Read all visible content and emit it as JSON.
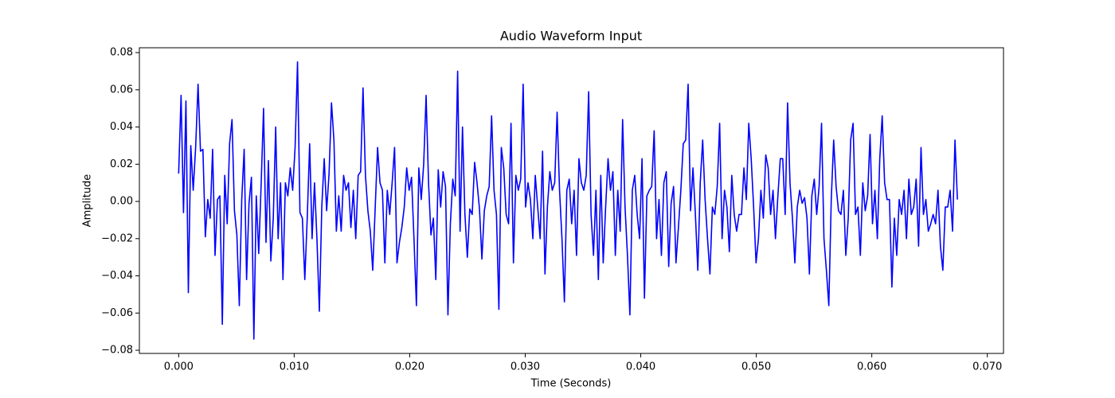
{
  "chart_data": {
    "type": "line",
    "title": "Audio Waveform Input",
    "x_label": "Time (Seconds)",
    "y_label": "Amplitude",
    "xlim": [
      -0.0034,
      0.0714
    ],
    "ylim": [
      -0.0817,
      0.0826
    ],
    "grid": false,
    "xticks": [
      {
        "value": 0,
        "label": "0.000"
      },
      {
        "value": 0.01,
        "label": "0.010"
      },
      {
        "value": 0.02,
        "label": "0.020"
      },
      {
        "value": 0.03,
        "label": "0.030"
      },
      {
        "value": 0.04,
        "label": "0.040"
      },
      {
        "value": 0.05,
        "label": "0.050"
      },
      {
        "value": 0.06,
        "label": "0.060"
      },
      {
        "value": 0.07,
        "label": "0.070"
      }
    ],
    "yticks": [
      {
        "value": -0.08,
        "label": "−0.08"
      },
      {
        "value": -0.06,
        "label": "−0.06"
      },
      {
        "value": -0.04,
        "label": "−0.04"
      },
      {
        "value": -0.02,
        "label": "−0.02"
      },
      {
        "value": 0,
        "label": "0.00"
      },
      0.02,
      0.04,
      0.06,
      0.08
    ],
    "x": [
      0,
      0.00021,
      0.00042,
      0.00063,
      0.00084,
      0.00105,
      0.00126,
      0.00147,
      0.00168,
      0.00189,
      0.0021,
      0.00231,
      0.00252,
      0.00273,
      0.00294,
      0.00315,
      0.00336,
      0.00357,
      0.00378,
      0.00399,
      0.0042,
      0.00441,
      0.00462,
      0.00483,
      0.00504,
      0.00525,
      0.00546,
      0.00567,
      0.00588,
      0.00609,
      0.0063,
      0.00651,
      0.00672,
      0.00693,
      0.00714,
      0.00735,
      0.00756,
      0.00777,
      0.00798,
      0.00819,
      0.0084,
      0.00861,
      0.00882,
      0.00903,
      0.00924,
      0.00945,
      0.00966,
      0.00987,
      0.01008,
      0.01029,
      0.0105,
      0.01071,
      0.01092,
      0.01113,
      0.01134,
      0.01155,
      0.01176,
      0.01197,
      0.01218,
      0.01239,
      0.0126,
      0.01281,
      0.01302,
      0.01323,
      0.01344,
      0.01365,
      0.01386,
      0.01407,
      0.01428,
      0.01449,
      0.0147,
      0.01491,
      0.01512,
      0.01533,
      0.01554,
      0.01575,
      0.01596,
      0.01617,
      0.01638,
      0.01659,
      0.0168,
      0.01701,
      0.01722,
      0.01743,
      0.01764,
      0.01785,
      0.01806,
      0.01827,
      0.01848,
      0.01869,
      0.0189,
      0.01911,
      0.01932,
      0.01953,
      0.01974,
      0.01995,
      0.02016,
      0.02037,
      0.02058,
      0.02079,
      0.021,
      0.02121,
      0.02142,
      0.02163,
      0.02184,
      0.02205,
      0.02226,
      0.02247,
      0.02268,
      0.02289,
      0.0231,
      0.02331,
      0.02352,
      0.02373,
      0.02394,
      0.02415,
      0.02436,
      0.02457,
      0.02478,
      0.02499,
      0.0252,
      0.02541,
      0.02562,
      0.02583,
      0.02604,
      0.02625,
      0.02646,
      0.02667,
      0.02688,
      0.02709,
      0.0273,
      0.02751,
      0.02772,
      0.02793,
      0.02814,
      0.02835,
      0.02856,
      0.02877,
      0.02898,
      0.02919,
      0.0294,
      0.02961,
      0.02982,
      0.03003,
      0.03024,
      0.03045,
      0.03066,
      0.03087,
      0.03108,
      0.03129,
      0.0315,
      0.03171,
      0.03192,
      0.03213,
      0.03234,
      0.03255,
      0.03276,
      0.03297,
      0.03318,
      0.03339,
      0.0336,
      0.03381,
      0.03402,
      0.03423,
      0.03444,
      0.03465,
      0.03486,
      0.03507,
      0.03528,
      0.03549,
      0.0357,
      0.03591,
      0.03612,
      0.03633,
      0.03654,
      0.03675,
      0.03696,
      0.03717,
      0.03738,
      0.03759,
      0.0378,
      0.03801,
      0.03822,
      0.03843,
      0.03864,
      0.03885,
      0.03906,
      0.03927,
      0.03948,
      0.03969,
      0.0399,
      0.04011,
      0.04032,
      0.04053,
      0.04074,
      0.04095,
      0.04116,
      0.04137,
      0.04158,
      0.04179,
      0.042,
      0.04221,
      0.04242,
      0.04263,
      0.04284,
      0.04305,
      0.04326,
      0.04347,
      0.04368,
      0.04389,
      0.0441,
      0.04431,
      0.04452,
      0.04473,
      0.04494,
      0.04515,
      0.04536,
      0.04557,
      0.04578,
      0.04599,
      0.0462,
      0.04641,
      0.04662,
      0.04683,
      0.04704,
      0.04725,
      0.04746,
      0.04767,
      0.04788,
      0.04809,
      0.0483,
      0.04851,
      0.04872,
      0.04893,
      0.04914,
      0.04935,
      0.04956,
      0.04977,
      0.04998,
      0.05019,
      0.0504,
      0.05061,
      0.05082,
      0.05103,
      0.05124,
      0.05145,
      0.05166,
      0.05187,
      0.05208,
      0.05229,
      0.0525,
      0.05271,
      0.05292,
      0.05313,
      0.05334,
      0.05355,
      0.05376,
      0.05397,
      0.05418,
      0.05439,
      0.0546,
      0.05481,
      0.05502,
      0.05523,
      0.05544,
      0.05565,
      0.05586,
      0.05607,
      0.05628,
      0.05649,
      0.0567,
      0.05691,
      0.05712,
      0.05733,
      0.05754,
      0.05775,
      0.05796,
      0.05817,
      0.05838,
      0.05859,
      0.0588,
      0.05901,
      0.05922,
      0.05943,
      0.05964,
      0.05985,
      0.06006,
      0.06027,
      0.06048,
      0.06069,
      0.0609,
      0.06111,
      0.06132,
      0.06153,
      0.06174,
      0.06195,
      0.06216,
      0.06237,
      0.06258,
      0.06279,
      0.063,
      0.06321,
      0.06342,
      0.06363,
      0.06384,
      0.06405,
      0.06426,
      0.06447,
      0.06468,
      0.06489,
      0.0651,
      0.06531,
      0.06552,
      0.06573,
      0.06594,
      0.06615,
      0.06636,
      0.06657,
      0.06678,
      0.06699,
      0.0672,
      0.06741
    ],
    "series": [
      {
        "color": "blue",
        "values": [
          0.015,
          0.057,
          -0.006,
          0.054,
          -0.049,
          0.03,
          0.006,
          0.029,
          0.063,
          0.027,
          0.028,
          -0.019,
          0.001,
          -0.009,
          0.028,
          -0.029,
          0.001,
          0.003,
          -0.066,
          0.014,
          -0.012,
          0.031,
          0.044,
          -0.005,
          -0.018,
          -0.056,
          0.001,
          0.028,
          -0.042,
          -0.001,
          0.013,
          -0.074,
          0.003,
          -0.028,
          0.009,
          0.05,
          -0.022,
          0.022,
          -0.032,
          -0.009,
          0.04,
          -0.02,
          0.01,
          -0.042,
          0.01,
          0.003,
          0.018,
          0.006,
          0.029,
          0.075,
          -0.006,
          -0.009,
          -0.042,
          -0.009,
          0.031,
          -0.02,
          0.01,
          -0.02,
          -0.059,
          -0.003,
          0.023,
          -0.005,
          0.015,
          0.053,
          0.033,
          -0.016,
          0.003,
          -0.016,
          0.014,
          0.006,
          0.01,
          -0.014,
          0.006,
          -0.02,
          0.014,
          0.016,
          0.061,
          0.014,
          -0.005,
          -0.016,
          -0.037,
          -0.004,
          0.029,
          0.01,
          0.006,
          -0.033,
          0.006,
          -0.007,
          0.01,
          0.029,
          -0.033,
          -0.022,
          -0.014,
          -0.003,
          0.018,
          0.006,
          0.013,
          -0.02,
          -0.056,
          0.018,
          0.001,
          0.02,
          0.057,
          0.01,
          -0.018,
          -0.009,
          -0.042,
          0.017,
          -0.003,
          0.016,
          0.008,
          -0.061,
          -0.012,
          0.012,
          0.003,
          0.07,
          -0.016,
          0.04,
          -0.007,
          -0.03,
          -0.004,
          -0.007,
          0.021,
          0.01,
          -0.004,
          -0.031,
          -0.005,
          0.003,
          0.008,
          0.046,
          0.006,
          -0.007,
          -0.058,
          0.029,
          0.018,
          -0.007,
          -0.012,
          0.042,
          -0.033,
          0.014,
          0.006,
          0.012,
          0.063,
          -0.003,
          0.01,
          0.001,
          -0.02,
          0.014,
          -0.003,
          -0.02,
          0.027,
          -0.039,
          -0.003,
          0.016,
          0.006,
          0.01,
          0.048,
          0.006,
          -0.02,
          -0.054,
          0.006,
          0.012,
          -0.012,
          0.006,
          -0.029,
          0.023,
          0.01,
          0.006,
          0.014,
          0.059,
          -0.007,
          -0.029,
          0.006,
          -0.042,
          0.014,
          -0.033,
          -0.003,
          0.023,
          0.006,
          0.016,
          -0.029,
          0.006,
          -0.016,
          0.044,
          -0.003,
          -0.029,
          -0.061,
          0.006,
          0.014,
          -0.007,
          -0.02,
          0.023,
          -0.052,
          0.003,
          0.006,
          0.008,
          0.038,
          -0.02,
          0.001,
          -0.029,
          0.01,
          0.016,
          -0.035,
          -0.001,
          0.008,
          -0.033,
          -0.014,
          0.006,
          0.031,
          0.033,
          0.063,
          -0.005,
          0.018,
          -0.007,
          -0.037,
          0.01,
          0.033,
          0.001,
          -0.02,
          -0.039,
          -0.003,
          -0.007,
          0.008,
          0.042,
          -0.02,
          0.006,
          -0.003,
          -0.027,
          0.014,
          -0.007,
          -0.016,
          -0.007,
          -0.007,
          0.018,
          0.001,
          0.042,
          0.023,
          -0.003,
          -0.033,
          -0.02,
          0.006,
          -0.009,
          0.025,
          0.018,
          -0.007,
          0.006,
          -0.02,
          0.003,
          0.023,
          0.023,
          -0.007,
          0.053,
          0.01,
          -0.009,
          -0.033,
          -0.003,
          0.006,
          -0.001,
          0.002,
          -0.009,
          -0.039,
          0.003,
          0.012,
          -0.007,
          0.008,
          0.042,
          -0.02,
          -0.037,
          -0.056,
          0.001,
          0.033,
          0.008,
          -0.005,
          -0.007,
          0.006,
          -0.029,
          -0.009,
          0.033,
          0.042,
          -0.007,
          -0.003,
          -0.029,
          0.01,
          -0.005,
          0.003,
          0.036,
          -0.012,
          0.006,
          -0.02,
          0.023,
          0.046,
          0.01,
          0.001,
          0.001,
          -0.046,
          -0.009,
          -0.029,
          0.001,
          -0.007,
          0.006,
          -0.02,
          0.012,
          -0.007,
          -0.003,
          0.012,
          -0.024,
          0.029,
          -0.007,
          0.001,
          -0.016,
          -0.012,
          -0.007,
          -0.012,
          0.006,
          -0.024,
          -0.037,
          -0.003,
          -0.003,
          0.006,
          -0.016,
          0.033,
          0.001
        ]
      }
    ]
  }
}
